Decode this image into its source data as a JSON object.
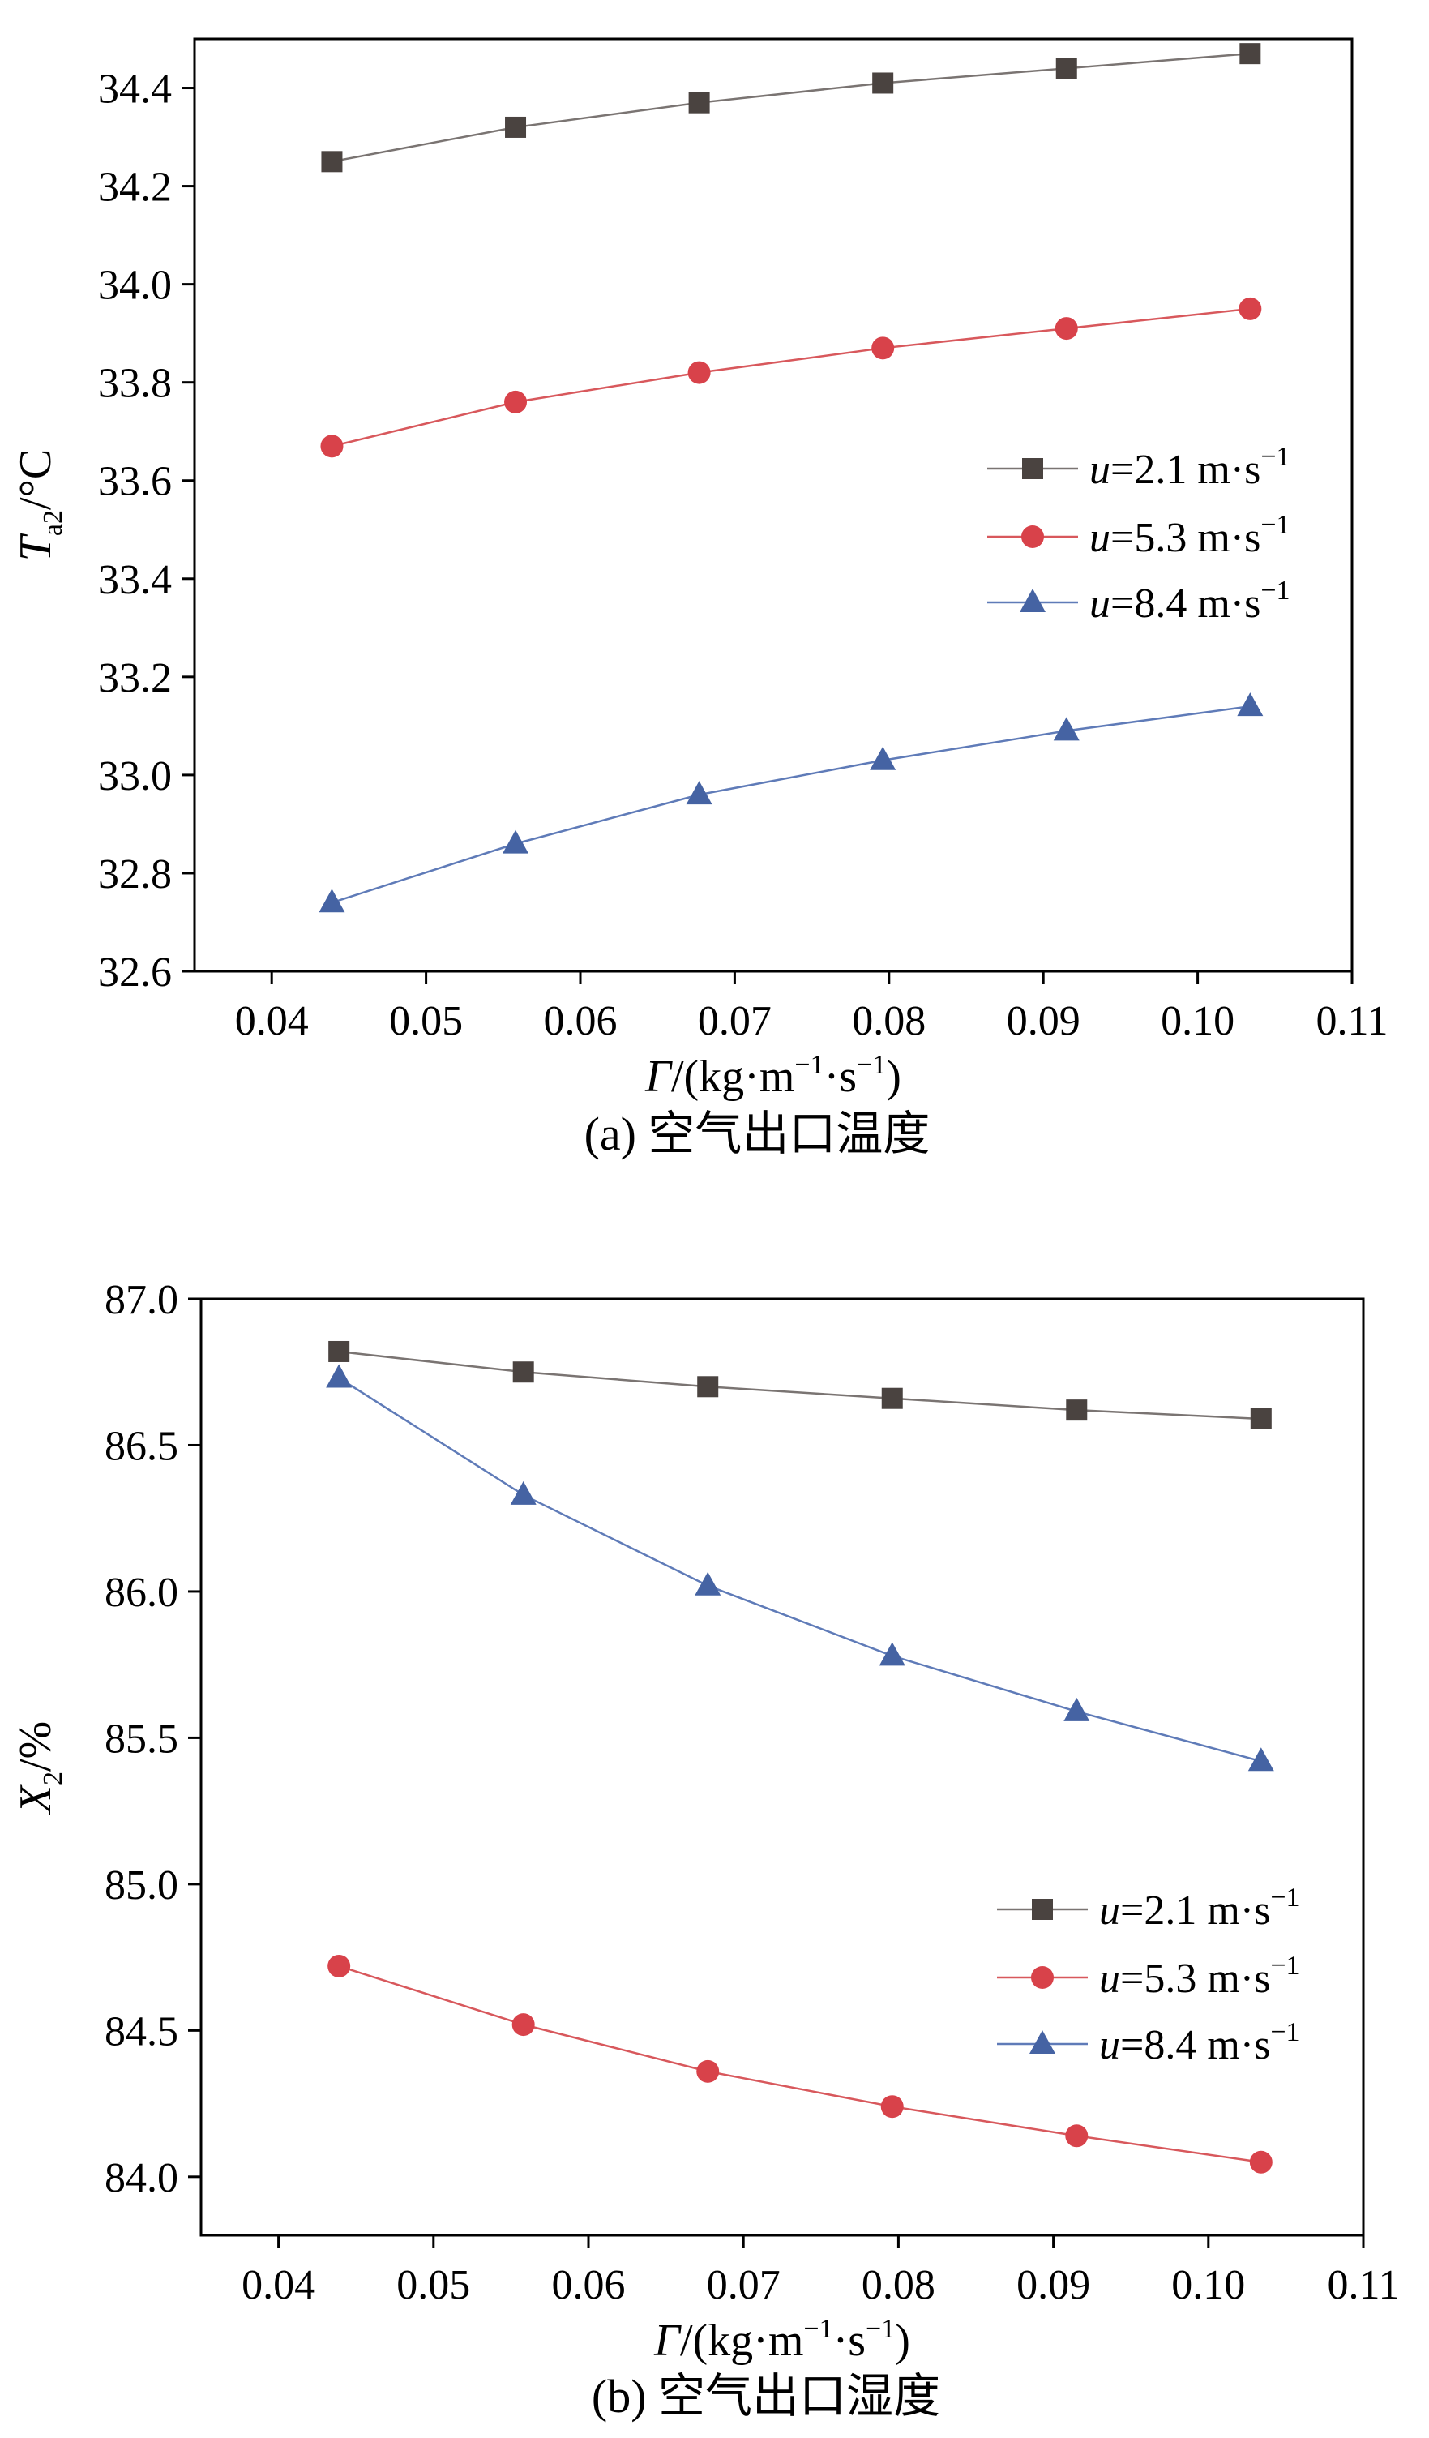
{
  "chart_data": [
    {
      "type": "line",
      "panel": "a",
      "caption": "(a) 空气出口温度",
      "xlabel": {
        "symbol": "Γ",
        "unit_open": "/(kg·m",
        "exp1": "−1",
        "mid": "·s",
        "exp2": "−1",
        "unit_close": ")"
      },
      "ylabel": {
        "symbol": "T",
        "subscript": "a2",
        "unit": "/°C"
      },
      "xlim": [
        0.035,
        0.11
      ],
      "ylim": [
        32.6,
        34.5
      ],
      "xticks": [
        0.04,
        0.05,
        0.06,
        0.07,
        0.08,
        0.09,
        0.1,
        0.11
      ],
      "xtick_labels": [
        "0.04",
        "0.05",
        "0.06",
        "0.07",
        "0.08",
        "0.09",
        "0.10",
        "0.11"
      ],
      "yticks": [
        32.6,
        32.8,
        33.0,
        33.2,
        33.4,
        33.6,
        33.8,
        34.0,
        34.2,
        34.4
      ],
      "ytick_labels": [
        "32.6",
        "32.8",
        "33.0",
        "33.2",
        "33.4",
        "33.6",
        "33.8",
        "34.0",
        "34.2",
        "34.4"
      ],
      "x": [
        0.0439,
        0.0558,
        0.0677,
        0.0796,
        0.0915,
        0.1034
      ],
      "legend_position": "center-right",
      "series": [
        {
          "var": "u",
          "eq": "=2.1 m·s",
          "exp": "−1",
          "marker": "square",
          "color": "#4a4340",
          "line_color": "#7a7472",
          "values": [
            34.25,
            34.32,
            34.37,
            34.41,
            34.44,
            34.47
          ]
        },
        {
          "var": "u",
          "eq": "=5.3 m·s",
          "exp": "−1",
          "marker": "circle",
          "color": "#d8424a",
          "line_color": "#d8585c",
          "values": [
            33.67,
            33.76,
            33.82,
            33.87,
            33.91,
            33.95
          ]
        },
        {
          "var": "u",
          "eq": "=8.4 m·s",
          "exp": "−1",
          "marker": "triangle",
          "color": "#4563a3",
          "line_color": "#5f7bb8",
          "values": [
            32.74,
            32.86,
            32.96,
            33.03,
            33.09,
            33.14
          ]
        }
      ]
    },
    {
      "type": "line",
      "panel": "b",
      "caption": "(b) 空气出口湿度",
      "xlabel": {
        "symbol": "Γ",
        "unit_open": "/(kg·m",
        "exp1": "−1",
        "mid": "·s",
        "exp2": "−1",
        "unit_close": ")"
      },
      "ylabel": {
        "symbol": "X",
        "subscript": "2",
        "unit": "/%"
      },
      "xlim": [
        0.035,
        0.11
      ],
      "ylim": [
        83.8,
        87.0
      ],
      "xticks": [
        0.04,
        0.05,
        0.06,
        0.07,
        0.08,
        0.09,
        0.1,
        0.11
      ],
      "xtick_labels": [
        "0.04",
        "0.05",
        "0.06",
        "0.07",
        "0.08",
        "0.09",
        "0.10",
        "0.11"
      ],
      "yticks": [
        84.0,
        84.5,
        85.0,
        85.5,
        86.0,
        86.5,
        87.0
      ],
      "ytick_labels": [
        "84.0",
        "84.5",
        "85.0",
        "85.5",
        "86.0",
        "86.5",
        "87.0"
      ],
      "x": [
        0.0439,
        0.0558,
        0.0677,
        0.0796,
        0.0915,
        0.1034
      ],
      "legend_position": "lower-right",
      "series": [
        {
          "var": "u",
          "eq": "=2.1 m·s",
          "exp": "−1",
          "marker": "square",
          "color": "#4a4340",
          "line_color": "#7a7472",
          "values": [
            86.82,
            86.75,
            86.7,
            86.66,
            86.62,
            86.59
          ]
        },
        {
          "var": "u",
          "eq": "=5.3 m·s",
          "exp": "−1",
          "marker": "circle",
          "color": "#d8424a",
          "line_color": "#d8585c",
          "values": [
            84.72,
            84.52,
            84.36,
            84.24,
            84.14,
            84.05
          ]
        },
        {
          "var": "u",
          "eq": "=8.4 m·s",
          "exp": "−1",
          "marker": "triangle",
          "color": "#4563a3",
          "line_color": "#5f7bb8",
          "values": [
            86.73,
            86.33,
            86.02,
            85.78,
            85.59,
            85.42
          ]
        }
      ]
    }
  ]
}
